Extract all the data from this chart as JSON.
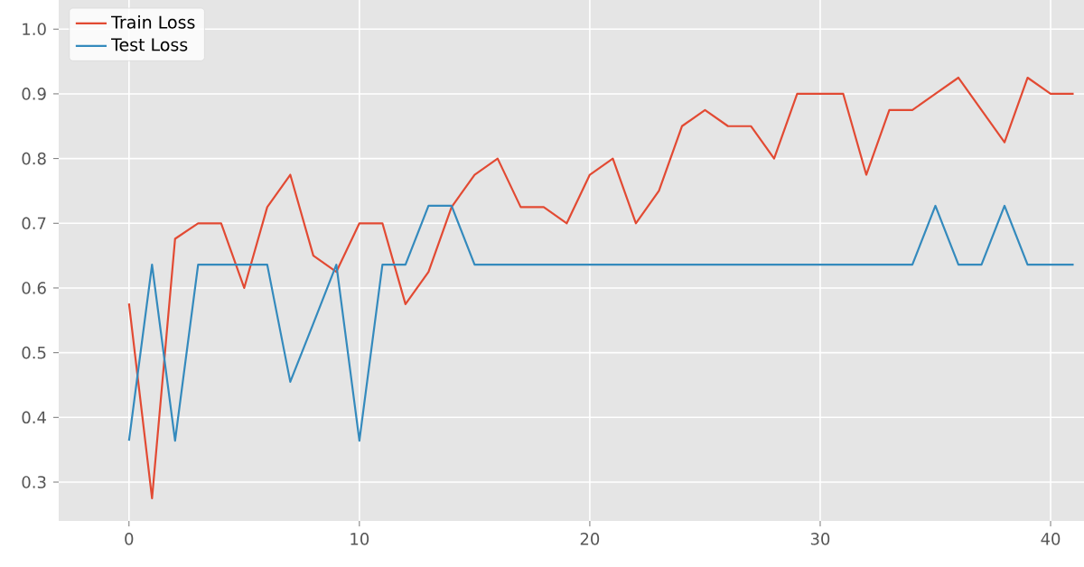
{
  "chart_data": {
    "type": "line",
    "x": [
      0,
      1,
      2,
      3,
      4,
      5,
      6,
      7,
      8,
      9,
      10,
      11,
      12,
      13,
      14,
      15,
      16,
      17,
      18,
      19,
      20,
      21,
      22,
      23,
      24,
      25,
      26,
      27,
      28,
      29,
      30,
      31,
      32,
      33,
      34,
      35,
      36,
      37,
      38,
      39,
      40,
      41
    ],
    "series": [
      {
        "name": "Train Loss",
        "color": "#e24a33",
        "values": [
          0.576,
          0.275,
          0.676,
          0.7,
          0.7,
          0.6,
          0.725,
          0.775,
          0.65,
          0.625,
          0.7,
          0.7,
          0.575,
          0.625,
          0.725,
          0.775,
          0.8,
          0.725,
          0.725,
          0.7,
          0.775,
          0.8,
          0.7,
          0.75,
          0.85,
          0.875,
          0.85,
          0.85,
          0.8,
          0.9,
          0.9,
          0.9,
          0.775,
          0.875,
          0.875,
          0.9,
          0.925,
          0.875,
          0.825,
          0.925,
          0.9,
          0.9
        ]
      },
      {
        "name": "Test Loss",
        "color": "#348abd",
        "values": [
          0.364,
          0.636,
          0.364,
          0.636,
          0.636,
          0.636,
          0.636,
          0.455,
          0.545,
          0.636,
          0.364,
          0.636,
          0.636,
          0.727,
          0.727,
          0.636,
          0.636,
          0.636,
          0.636,
          0.636,
          0.636,
          0.636,
          0.636,
          0.636,
          0.636,
          0.636,
          0.636,
          0.636,
          0.636,
          0.636,
          0.636,
          0.636,
          0.636,
          0.636,
          0.636,
          0.727,
          0.636,
          0.636,
          0.727,
          0.636,
          0.636,
          0.636
        ]
      }
    ],
    "xlim": [
      -3.05,
      41.45
    ],
    "ylim": [
      0.24,
      1.045
    ],
    "xticks": [
      0,
      10,
      20,
      30,
      40
    ],
    "yticks": [
      0.3,
      0.4,
      0.5,
      0.6,
      0.7,
      0.8,
      0.9,
      {
        "value": 1.0,
        "label": "1.0"
      }
    ],
    "grid": true,
    "legend": "top left",
    "line_style": "solid",
    "marker": "none"
  }
}
